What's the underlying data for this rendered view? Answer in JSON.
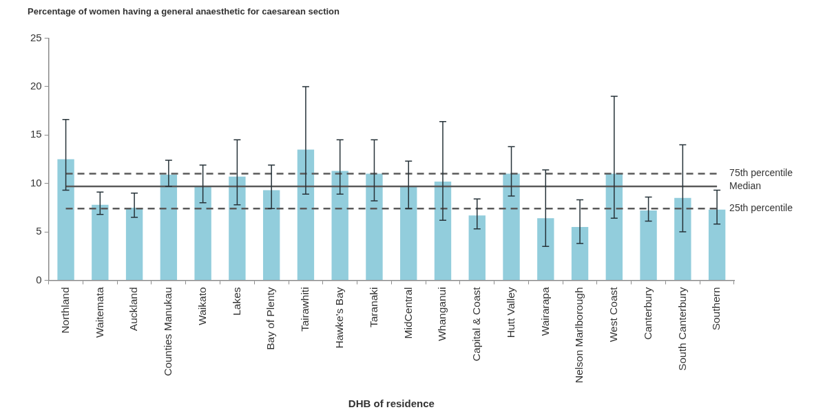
{
  "chart_data": {
    "type": "bar",
    "title": "Percentage of women having a general anaesthetic for caesarean section",
    "xlabel": "DHB of residence",
    "categories": [
      "Northland",
      "Waitemata",
      "Auckland",
      "Counties Manukau",
      "Waikato",
      "Lakes",
      "Bay of Plenty",
      "Tairawhiti",
      "Hawke's Bay",
      "Taranaki",
      "MidCentral",
      "Whanganui",
      "Capital & Coast",
      "Hutt Valley",
      "Wairarapa",
      "Nelson Marlborough",
      "West Coast",
      "Canterbury",
      "South Canterbury",
      "Southern"
    ],
    "values": [
      12.5,
      7.8,
      7.5,
      10.9,
      9.7,
      10.7,
      9.3,
      13.5,
      11.3,
      11.0,
      9.7,
      10.2,
      6.7,
      11.0,
      6.4,
      5.5,
      11.0,
      7.2,
      8.5,
      7.3
    ],
    "errors": [
      [
        9.3,
        16.6
      ],
      [
        6.8,
        9.1
      ],
      [
        6.5,
        9.0
      ],
      [
        9.7,
        12.4
      ],
      [
        8.0,
        11.9
      ],
      [
        7.8,
        14.5
      ],
      [
        7.4,
        11.9
      ],
      [
        8.9,
        20.0
      ],
      [
        8.9,
        14.5
      ],
      [
        8.2,
        14.5
      ],
      [
        7.4,
        12.3
      ],
      [
        6.2,
        16.4
      ],
      [
        5.3,
        8.4
      ],
      [
        8.7,
        13.8
      ],
      [
        3.5,
        11.4
      ],
      [
        3.8,
        8.3
      ],
      [
        6.4,
        19.0
      ],
      [
        6.1,
        8.6
      ],
      [
        5.0,
        14.0
      ],
      [
        5.8,
        9.3
      ]
    ],
    "color": "#92cddc",
    "ylim": [
      0,
      25
    ],
    "yticks": [
      0,
      5,
      10,
      15,
      20,
      25
    ],
    "ref_lines": [
      {
        "axis": "y",
        "value": 11.0,
        "label": "75th percentile",
        "color": "#595959",
        "line_style": "dashed"
      },
      {
        "axis": "y",
        "value": 9.7,
        "label": "Median",
        "color": "#595959",
        "line_style": "solid"
      },
      {
        "axis": "y",
        "value": 7.4,
        "label": "25th percentile",
        "color": "#595959",
        "line_style": "dashed"
      }
    ]
  }
}
